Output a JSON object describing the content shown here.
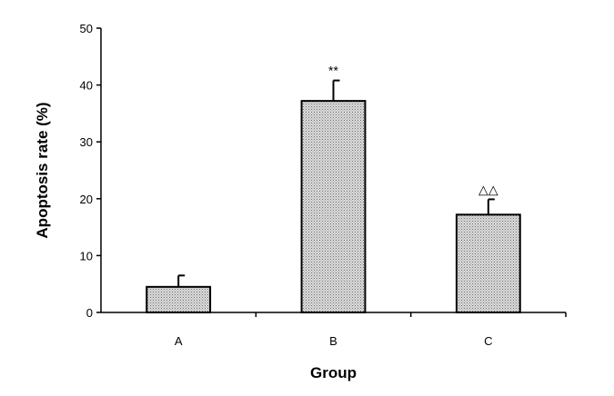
{
  "chart_data": {
    "type": "bar",
    "title": "",
    "xlabel": "Group",
    "ylabel": "Apoptosis rate (%)",
    "categories": [
      "A",
      "B",
      "C"
    ],
    "values": [
      4.5,
      37.2,
      17.2
    ],
    "errors": [
      2.0,
      3.6,
      2.7
    ],
    "annotations": [
      "",
      "**",
      "△△"
    ],
    "ylim": [
      0,
      50
    ],
    "yticks": [
      0,
      10,
      20,
      30,
      40,
      50
    ],
    "grid": false,
    "legend": "none",
    "bar_fill": "#c9c9c9",
    "bar_stroke": "#000000"
  }
}
